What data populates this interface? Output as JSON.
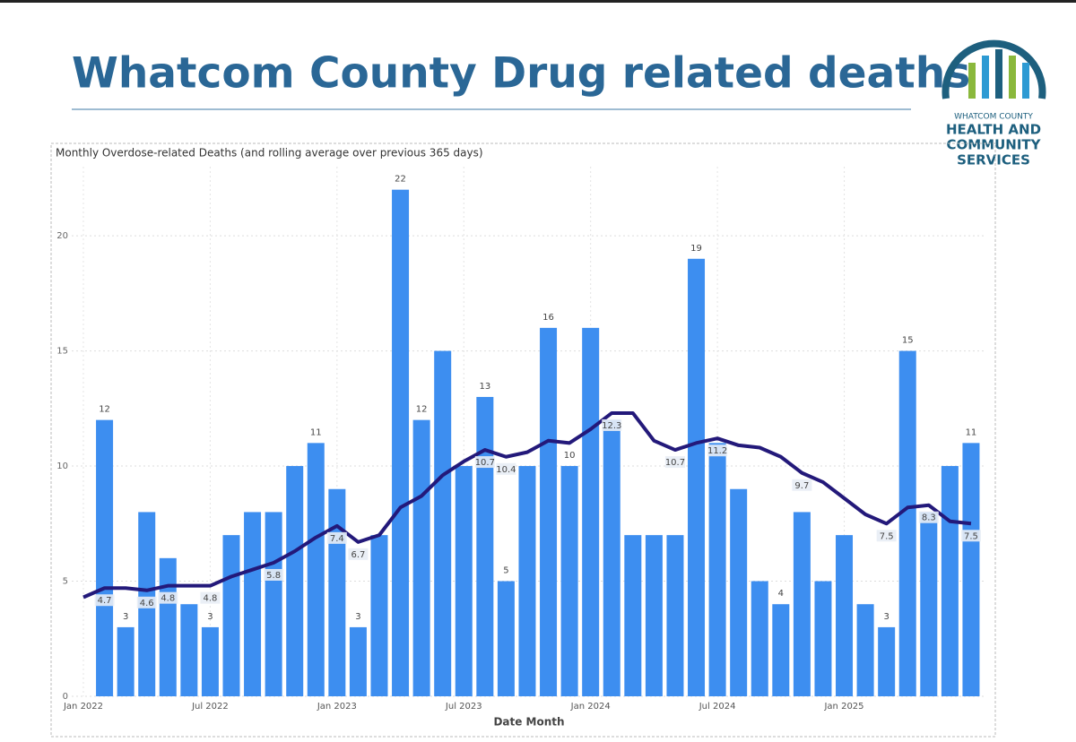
{
  "title": "Whatcom County Drug related deaths",
  "logo": {
    "lines": [
      "WHATCOM COUNTY",
      "HEALTH AND",
      "COMMUNITY",
      "SERVICES"
    ]
  },
  "chart_data": {
    "type": "bar-line",
    "title": "Monthly Overdose-related Deaths (and rolling average over previous 365 days)",
    "x_label": "Date Month",
    "categories": [
      "Jan 2022",
      null,
      null,
      null,
      null,
      null,
      "Jul 2022",
      null,
      null,
      null,
      null,
      null,
      "Jan 2023",
      null,
      null,
      null,
      null,
      null,
      "Jul 2023",
      null,
      null,
      null,
      null,
      null,
      "Jan 2024",
      null,
      null,
      null,
      null,
      null,
      "Jul 2024",
      null,
      null,
      null,
      null,
      null,
      "Jan 2025",
      null,
      null,
      null,
      null,
      null,
      null
    ],
    "series": [
      {
        "name": "Monthly deaths",
        "color": "#3d8ef0",
        "values": [
          null,
          12,
          3,
          8,
          6,
          4,
          3,
          7,
          8,
          8,
          10,
          11,
          9,
          3,
          7,
          22,
          12,
          15,
          10,
          13,
          5,
          10,
          16,
          10,
          16,
          12,
          7,
          7,
          7,
          19,
          11,
          9,
          5,
          4,
          8,
          5,
          7,
          4,
          3,
          15,
          8,
          10,
          11
        ],
        "value_labels": [
          null,
          "12",
          "3",
          null,
          null,
          null,
          "3",
          null,
          null,
          null,
          null,
          "11",
          null,
          "3",
          null,
          "22",
          "12",
          null,
          null,
          "13",
          "5",
          null,
          "16",
          "10",
          null,
          null,
          null,
          null,
          null,
          "19",
          null,
          null,
          null,
          "4",
          null,
          null,
          null,
          null,
          "3",
          "15",
          null,
          null,
          "11"
        ]
      },
      {
        "name": "Rolling average",
        "color": "#23197a",
        "values": [
          4.3,
          4.7,
          4.7,
          4.6,
          4.8,
          4.8,
          4.8,
          5.2,
          5.5,
          5.8,
          6.3,
          6.9,
          7.4,
          6.7,
          7.0,
          8.2,
          8.7,
          9.6,
          10.2,
          10.7,
          10.4,
          10.6,
          11.1,
          11.0,
          11.6,
          12.3,
          12.3,
          11.1,
          10.7,
          11.0,
          11.2,
          10.9,
          10.8,
          10.4,
          9.7,
          9.3,
          8.6,
          7.9,
          7.5,
          8.2,
          8.3,
          7.6,
          7.5
        ],
        "value_labels": [
          null,
          "4.7",
          null,
          "4.6",
          "4.8",
          null,
          "4.8",
          null,
          null,
          "5.8",
          null,
          null,
          "7.4",
          "6.7",
          null,
          null,
          null,
          null,
          null,
          "10.7",
          "10.4",
          null,
          null,
          null,
          null,
          "12.3",
          null,
          null,
          "10.7",
          null,
          "11.2",
          null,
          null,
          null,
          "9.7",
          null,
          null,
          null,
          "7.5",
          null,
          "8.3",
          null,
          "7.5"
        ]
      }
    ],
    "ylim": [
      0,
      23
    ],
    "yticks": [
      0,
      5,
      10,
      15,
      20
    ],
    "grid": true
  }
}
